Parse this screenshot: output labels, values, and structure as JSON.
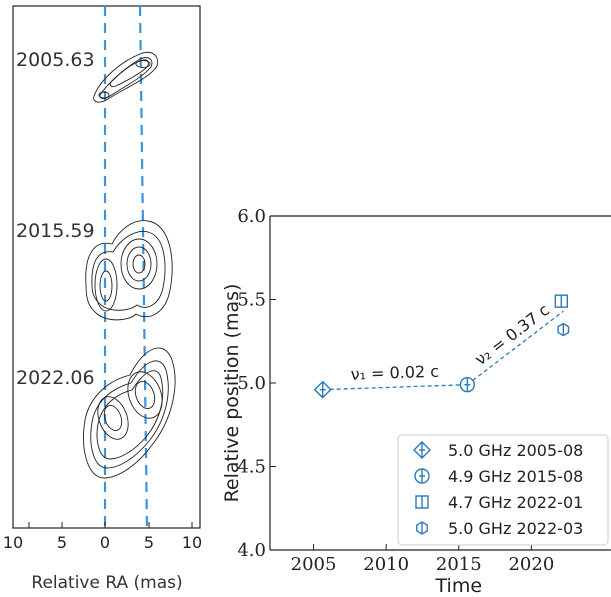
{
  "left_panel": {
    "epochs": [
      "2005.63",
      "2015.59",
      "2022.06"
    ],
    "xlabel": "Relative RA (mas)",
    "xticks": [
      "10",
      "5",
      "0",
      "5",
      "10"
    ]
  },
  "chart_data": {
    "type": "scatter",
    "title": "",
    "xlabel": "Time",
    "ylabel": "Relative position (mas)",
    "xlim": [
      2002,
      2025
    ],
    "ylim": [
      4.0,
      6.0
    ],
    "xticks": [
      "2005",
      "2010",
      "2015",
      "2020"
    ],
    "yticks": [
      "4.0",
      "4.5",
      "5.0",
      "5.5",
      "6.0"
    ],
    "grid": false,
    "legend_position": "bottom-right",
    "series": [
      {
        "name": "5.0 GHz 2005-08",
        "marker": "diamond",
        "x": 2005.63,
        "y": 4.96
      },
      {
        "name": "4.9 GHz 2015-08",
        "marker": "circle",
        "x": 2015.59,
        "y": 4.99
      },
      {
        "name": "4.7 GHz 2022-01",
        "marker": "square",
        "x": 2022.06,
        "y": 5.49
      },
      {
        "name": "5.0 GHz 2022-03",
        "marker": "hexagon",
        "x": 2022.2,
        "y": 5.32
      }
    ],
    "fits": [
      {
        "label": "ν₁ = 0.02 c",
        "x": [
          2005.63,
          2015.59
        ],
        "y": [
          4.96,
          4.99
        ]
      },
      {
        "label": "ν₂ = 0.37 c",
        "x": [
          2015.59,
          2022.2
        ],
        "y": [
          4.99,
          5.43
        ]
      }
    ],
    "color": "#2a7ab8"
  }
}
